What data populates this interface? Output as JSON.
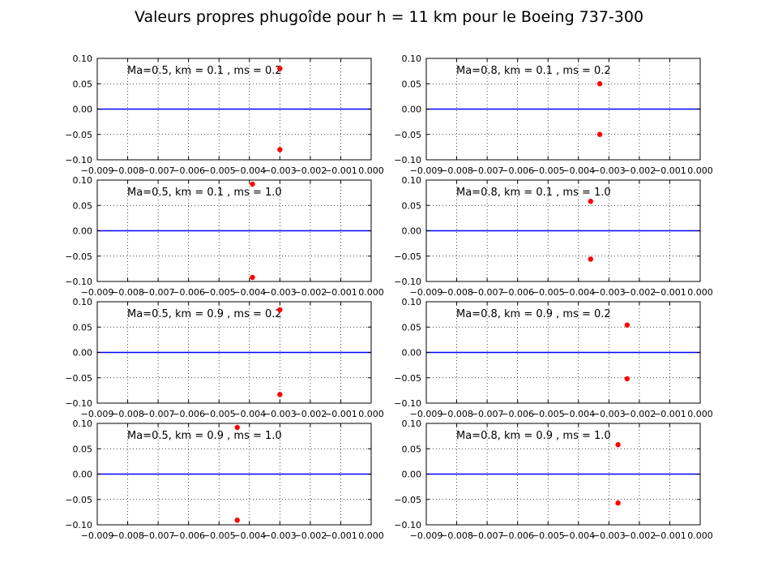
{
  "title": "Valeurs propres phugoîde pour h = 11 km pour le Boeing 737-300",
  "colors": {
    "points": "#ff0000",
    "zero_line": "#0000ff",
    "background": "#ffffff"
  },
  "chart_data": [
    {
      "type": "scatter",
      "annotation": "Ma=0.5, km = 0.1 , ms = 0.2",
      "xlim": [
        -0.009,
        0.0
      ],
      "ylim": [
        -0.1,
        0.1
      ],
      "xticks": [
        "−0.009",
        "−0.008",
        "−0.007",
        "−0.006",
        "−0.005",
        "−0.004",
        "−0.003",
        "−0.002",
        "−0.001",
        "0.000"
      ],
      "yticks": [
        "−0.10",
        "−0.05",
        "0.00",
        "0.05",
        "0.10"
      ],
      "grid": true,
      "hline": 0.0,
      "points": [
        [
          -0.003,
          0.08
        ],
        [
          -0.003,
          -0.08
        ]
      ]
    },
    {
      "type": "scatter",
      "annotation": "Ma=0.8, km = 0.1 , ms = 0.2",
      "xlim": [
        -0.009,
        0.0
      ],
      "ylim": [
        -0.1,
        0.1
      ],
      "xticks": [
        "−0.009",
        "−0.008",
        "−0.007",
        "−0.006",
        "−0.005",
        "−0.004",
        "−0.003",
        "−0.002",
        "−0.001",
        "0.000"
      ],
      "yticks": [
        "−0.10",
        "−0.05",
        "0.00",
        "0.05",
        "0.10"
      ],
      "grid": true,
      "hline": 0.0,
      "points": [
        [
          -0.0033,
          0.05
        ],
        [
          -0.0033,
          -0.05
        ]
      ]
    },
    {
      "type": "scatter",
      "annotation": "Ma=0.5, km = 0.1 , ms = 1.0",
      "xlim": [
        -0.009,
        0.0
      ],
      "ylim": [
        -0.1,
        0.1
      ],
      "xticks": [
        "−0.009",
        "−0.008",
        "−0.007",
        "−0.006",
        "−0.005",
        "−0.004",
        "−0.003",
        "−0.002",
        "−0.001",
        "0.000"
      ],
      "yticks": [
        "−0.10",
        "−0.05",
        "0.00",
        "0.05",
        "0.10"
      ],
      "grid": true,
      "hline": 0.0,
      "points": [
        [
          -0.0039,
          0.092
        ],
        [
          -0.0039,
          -0.092
        ]
      ]
    },
    {
      "type": "scatter",
      "annotation": "Ma=0.8, km = 0.1 , ms = 1.0",
      "xlim": [
        -0.009,
        0.0
      ],
      "ylim": [
        -0.1,
        0.1
      ],
      "xticks": [
        "−0.009",
        "−0.008",
        "−0.007",
        "−0.006",
        "−0.005",
        "−0.004",
        "−0.003",
        "−0.002",
        "−0.001",
        "0.000"
      ],
      "yticks": [
        "−0.10",
        "−0.05",
        "0.00",
        "0.05",
        "0.10"
      ],
      "grid": true,
      "hline": 0.0,
      "points": [
        [
          -0.0036,
          0.058
        ],
        [
          -0.0036,
          -0.056
        ]
      ]
    },
    {
      "type": "scatter",
      "annotation": "Ma=0.5, km = 0.9 , ms = 0.2",
      "xlim": [
        -0.009,
        0.0
      ],
      "ylim": [
        -0.1,
        0.1
      ],
      "xticks": [
        "−0.009",
        "−0.008",
        "−0.007",
        "−0.006",
        "−0.005",
        "−0.004",
        "−0.003",
        "−0.002",
        "−0.001",
        "0.000"
      ],
      "yticks": [
        "−0.10",
        "−0.05",
        "0.00",
        "0.05",
        "0.10"
      ],
      "grid": true,
      "hline": 0.0,
      "points": [
        [
          -0.003,
          0.084
        ],
        [
          -0.003,
          -0.083
        ]
      ]
    },
    {
      "type": "scatter",
      "annotation": "Ma=0.8, km = 0.9 , ms = 0.2",
      "xlim": [
        -0.009,
        0.0
      ],
      "ylim": [
        -0.1,
        0.1
      ],
      "xticks": [
        "−0.009",
        "−0.008",
        "−0.007",
        "−0.006",
        "−0.005",
        "−0.004",
        "−0.003",
        "−0.002",
        "−0.001",
        "0.000"
      ],
      "yticks": [
        "−0.10",
        "−0.05",
        "0.00",
        "0.05",
        "0.10"
      ],
      "grid": true,
      "hline": 0.0,
      "points": [
        [
          -0.0024,
          0.054
        ],
        [
          -0.0024,
          -0.052
        ]
      ]
    },
    {
      "type": "scatter",
      "annotation": "Ma=0.5, km = 0.9 , ms = 1.0",
      "xlim": [
        -0.009,
        0.0
      ],
      "ylim": [
        -0.1,
        0.1
      ],
      "xticks": [
        "−0.009",
        "−0.008",
        "−0.007",
        "−0.006",
        "−0.005",
        "−0.004",
        "−0.003",
        "−0.002",
        "−0.001",
        "0.000"
      ],
      "yticks": [
        "−0.10",
        "−0.05",
        "0.00",
        "0.05",
        "0.10"
      ],
      "grid": true,
      "hline": 0.0,
      "points": [
        [
          -0.0044,
          0.092
        ],
        [
          -0.0044,
          -0.091
        ]
      ]
    },
    {
      "type": "scatter",
      "annotation": "Ma=0.8, km = 0.9 , ms = 1.0",
      "xlim": [
        -0.009,
        0.0
      ],
      "ylim": [
        -0.1,
        0.1
      ],
      "xticks": [
        "−0.009",
        "−0.008",
        "−0.007",
        "−0.006",
        "−0.005",
        "−0.004",
        "−0.003",
        "−0.002",
        "−0.001",
        "0.000"
      ],
      "yticks": [
        "−0.10",
        "−0.05",
        "0.00",
        "0.05",
        "0.10"
      ],
      "grid": true,
      "hline": 0.0,
      "points": [
        [
          -0.0027,
          0.058
        ],
        [
          -0.0027,
          -0.057
        ]
      ]
    }
  ]
}
